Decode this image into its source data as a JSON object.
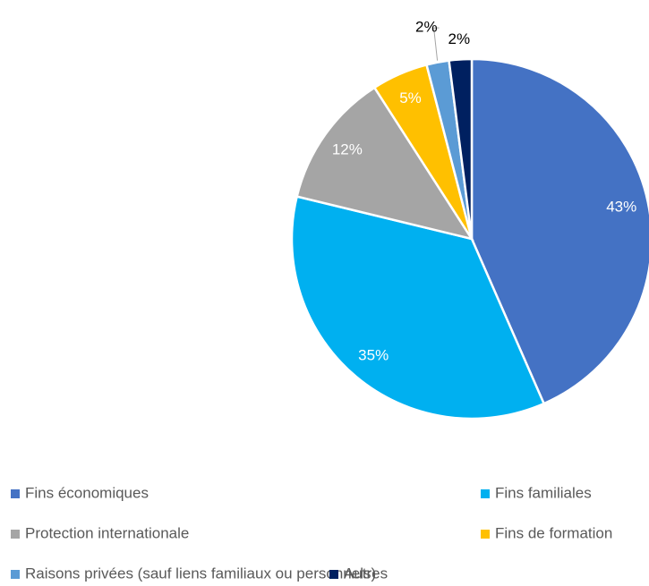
{
  "chart_data": {
    "type": "pie",
    "categories": [
      "Fins économiques",
      "Fins familiales",
      "Protection internationale",
      "Fins de formation",
      "Raisons privées (sauf liens familiaux ou personnels)",
      "Autres"
    ],
    "values": [
      43,
      35,
      12,
      5,
      2,
      2
    ],
    "value_labels": [
      "43%",
      "35%",
      "12%",
      "5%",
      "2%",
      "2%"
    ],
    "colors": [
      "#4472C4",
      "#00B0F0",
      "#A5A5A5",
      "#FFC000",
      "#5B9BD5",
      "#002060"
    ],
    "legend": "bottom"
  }
}
